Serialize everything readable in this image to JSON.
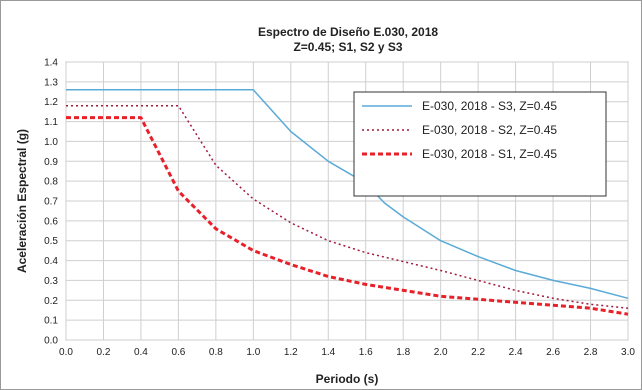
{
  "chart_data": {
    "type": "line",
    "title": [
      "Espectro de Diseño E.030, 2018",
      "Z=0.45; S1, S2 y S3"
    ],
    "xlabel": "Periodo (s)",
    "ylabel": "Aceleración Espectral (g)",
    "xlim": [
      0.0,
      3.0
    ],
    "ylim": [
      0.0,
      1.4
    ],
    "x_ticks": [
      "0.0",
      "0.2",
      "0.4",
      "0.6",
      "0.8",
      "1.0",
      "1.2",
      "1.4",
      "1.6",
      "1.8",
      "2.0",
      "2.2",
      "2.4",
      "2.6",
      "2.8",
      "3.0"
    ],
    "y_ticks": [
      "0.0",
      "0.1",
      "0.2",
      "0.3",
      "0.4",
      "0.5",
      "0.6",
      "0.7",
      "0.8",
      "0.9",
      "1.0",
      "1.1",
      "1.2",
      "1.3",
      "1.4"
    ],
    "grid": true,
    "legend_position": "top-right",
    "series": [
      {
        "name": "E-030, 2018 - S3, Z=0.45",
        "color": "#5aaad8",
        "style": "solid",
        "x": [
          0.0,
          1.0,
          1.2,
          1.4,
          1.6,
          1.7,
          1.8,
          2.0,
          2.2,
          2.4,
          2.6,
          2.8,
          3.0
        ],
        "y": [
          1.26,
          1.26,
          1.05,
          0.9,
          0.79,
          0.69,
          0.62,
          0.5,
          0.42,
          0.35,
          0.3,
          0.26,
          0.21
        ]
      },
      {
        "name": "E-030, 2018 - S2, Z=0.45",
        "color": "#a01a3c",
        "style": "dotted",
        "x": [
          0.0,
          0.6,
          0.8,
          1.0,
          1.2,
          1.4,
          1.6,
          2.0,
          2.4,
          2.6,
          2.8,
          3.0
        ],
        "y": [
          1.18,
          1.18,
          0.88,
          0.71,
          0.59,
          0.5,
          0.44,
          0.35,
          0.25,
          0.21,
          0.18,
          0.16
        ]
      },
      {
        "name": "E-030, 2018 - S1, Z=0.45",
        "color": "#e8202a",
        "style": "dashed",
        "x": [
          0.0,
          0.4,
          0.6,
          0.8,
          1.0,
          1.2,
          1.4,
          1.6,
          2.0,
          2.4,
          2.8,
          3.0
        ],
        "y": [
          1.12,
          1.12,
          0.75,
          0.56,
          0.45,
          0.38,
          0.32,
          0.28,
          0.22,
          0.19,
          0.16,
          0.13
        ]
      }
    ]
  }
}
